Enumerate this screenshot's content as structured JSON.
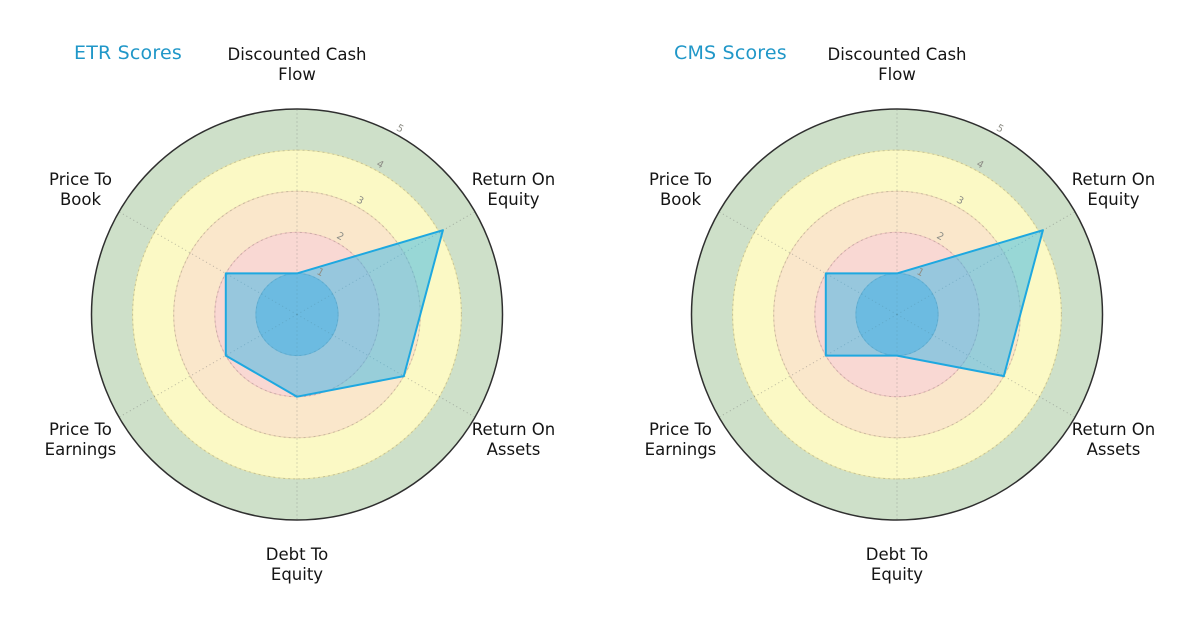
{
  "chart_data": [
    {
      "type": "radar",
      "title": "ETR Scores",
      "title_color": "#2097c8",
      "categories": [
        "Discounted Cash Flow",
        "Return On Equity",
        "Return On Assets",
        "Debt To Equity",
        "Price To Earnings",
        "Price To Book"
      ],
      "category_labels": [
        "Discounted Cash\nFlow",
        "Return On\nEquity",
        "Return On\nAssets",
        "Debt To\nEquity",
        "Price To\nEarnings",
        "Price To\nBook"
      ],
      "values": [
        1.0,
        4.1,
        3.0,
        2.0,
        2.0,
        2.0
      ],
      "rlim": [
        0,
        5
      ],
      "rticks": [
        "1",
        "2",
        "3",
        "4",
        "5"
      ],
      "axes_layout": "6 spokes at 60 degree spacing, clockwise from top: DCF, ROE, ROA, DTE, PTE, PTB; dotted grey spokes and dashed ring gridlines; radial tick labels along the 61-degree ray",
      "legend": "none",
      "series_color": "#35b5e8",
      "series_stroke": "#1ea8e0",
      "tick_color": "#8f8f88",
      "outline_color": "#2f2f2f",
      "bands": [
        {
          "from": 0,
          "to": 1,
          "color": "#a3c1da",
          "edge": "#93b2cc"
        },
        {
          "from": 1,
          "to": 2,
          "color": "#f9d8d3",
          "edge": "#efc4bf"
        },
        {
          "from": 2,
          "to": 3,
          "color": "#fae7cb",
          "edge": "#eed7b4"
        },
        {
          "from": 3,
          "to": 4,
          "color": "#fbf9c5",
          "edge": "#e9e6a9"
        },
        {
          "from": 4,
          "to": 5,
          "color": "#cee0c9",
          "edge": "#2f2f2f",
          "edge_width": 1.5
        }
      ]
    },
    {
      "type": "radar",
      "title": "CMS Scores",
      "title_color": "#2097c8",
      "categories": [
        "Discounted Cash Flow",
        "Return On Equity",
        "Return On Assets",
        "Debt To Equity",
        "Price To Earnings",
        "Price To Book"
      ],
      "category_labels": [
        "Discounted Cash\nFlow",
        "Return On\nEquity",
        "Return On\nAssets",
        "Debt To\nEquity",
        "Price To\nEarnings",
        "Price To\nBook"
      ],
      "values": [
        1.0,
        4.1,
        3.0,
        1.0,
        2.0,
        2.0
      ],
      "rlim": [
        0,
        5
      ],
      "rticks": [
        "1",
        "2",
        "3",
        "4",
        "5"
      ],
      "axes_layout": "6 spokes at 60 degree spacing, clockwise from top: DCF, ROE, ROA, DTE, PTE, PTB; dotted grey spokes and dashed ring gridlines; radial tick labels along the 61-degree ray",
      "legend": "none",
      "series_color": "#35b5e8",
      "series_stroke": "#1ea8e0",
      "tick_color": "#8f8f88",
      "outline_color": "#2f2f2f",
      "bands": [
        {
          "from": 0,
          "to": 1,
          "color": "#a3c1da",
          "edge": "#93b2cc"
        },
        {
          "from": 1,
          "to": 2,
          "color": "#f9d8d3",
          "edge": "#efc4bf"
        },
        {
          "from": 2,
          "to": 3,
          "color": "#fae7cb",
          "edge": "#eed7b4"
        },
        {
          "from": 3,
          "to": 4,
          "color": "#fbf9c5",
          "edge": "#e9e6a9"
        },
        {
          "from": 4,
          "to": 5,
          "color": "#cee0c9",
          "edge": "#2f2f2f",
          "edge_width": 1.5
        }
      ]
    }
  ]
}
